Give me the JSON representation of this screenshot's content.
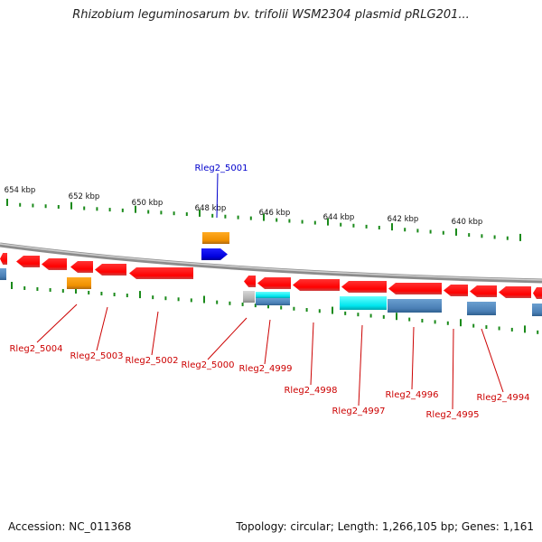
{
  "title": "Rhizobium leguminosarum bv. trifolii WSM2304 plasmid pRLG201...",
  "footer": {
    "accession": "Accession: NC_011368",
    "summary": "Topology: circular; Length: 1,266,105 bp; Genes: 1,161"
  },
  "colors": {
    "backbone": "#8c8c8c",
    "tick": "#1a8a1a",
    "red": "#ff0000",
    "orange": "#ff9900",
    "blue": "#0000ee",
    "steelblue": "#4a7fb5",
    "cyan": "#00e5ee",
    "gray": "#b0b0b0",
    "label_bottom": "#cc0000",
    "label_top": "#0000cc"
  },
  "scale_labels": [
    "654 kbp",
    "652 kbp",
    "650 kbp",
    "648 kbp",
    "646 kbp",
    "644 kbp",
    "642 kbp",
    "640 kbp"
  ],
  "gene_labels": {
    "top": [
      "Rleg2_5001"
    ],
    "bottom": [
      "Rleg2_5004",
      "Rleg2_5003",
      "Rleg2_5002",
      "Rleg2_5000",
      "Rleg2_4999",
      "Rleg2_4998",
      "Rleg2_4997",
      "Rleg2_4996",
      "Rleg2_4995",
      "Rleg2_4994"
    ]
  },
  "gene_colors": [
    "red",
    "orange",
    "blue",
    "steelblue",
    "cyan",
    "gray"
  ],
  "strand_directions": [
    "forward",
    "reverse"
  ]
}
